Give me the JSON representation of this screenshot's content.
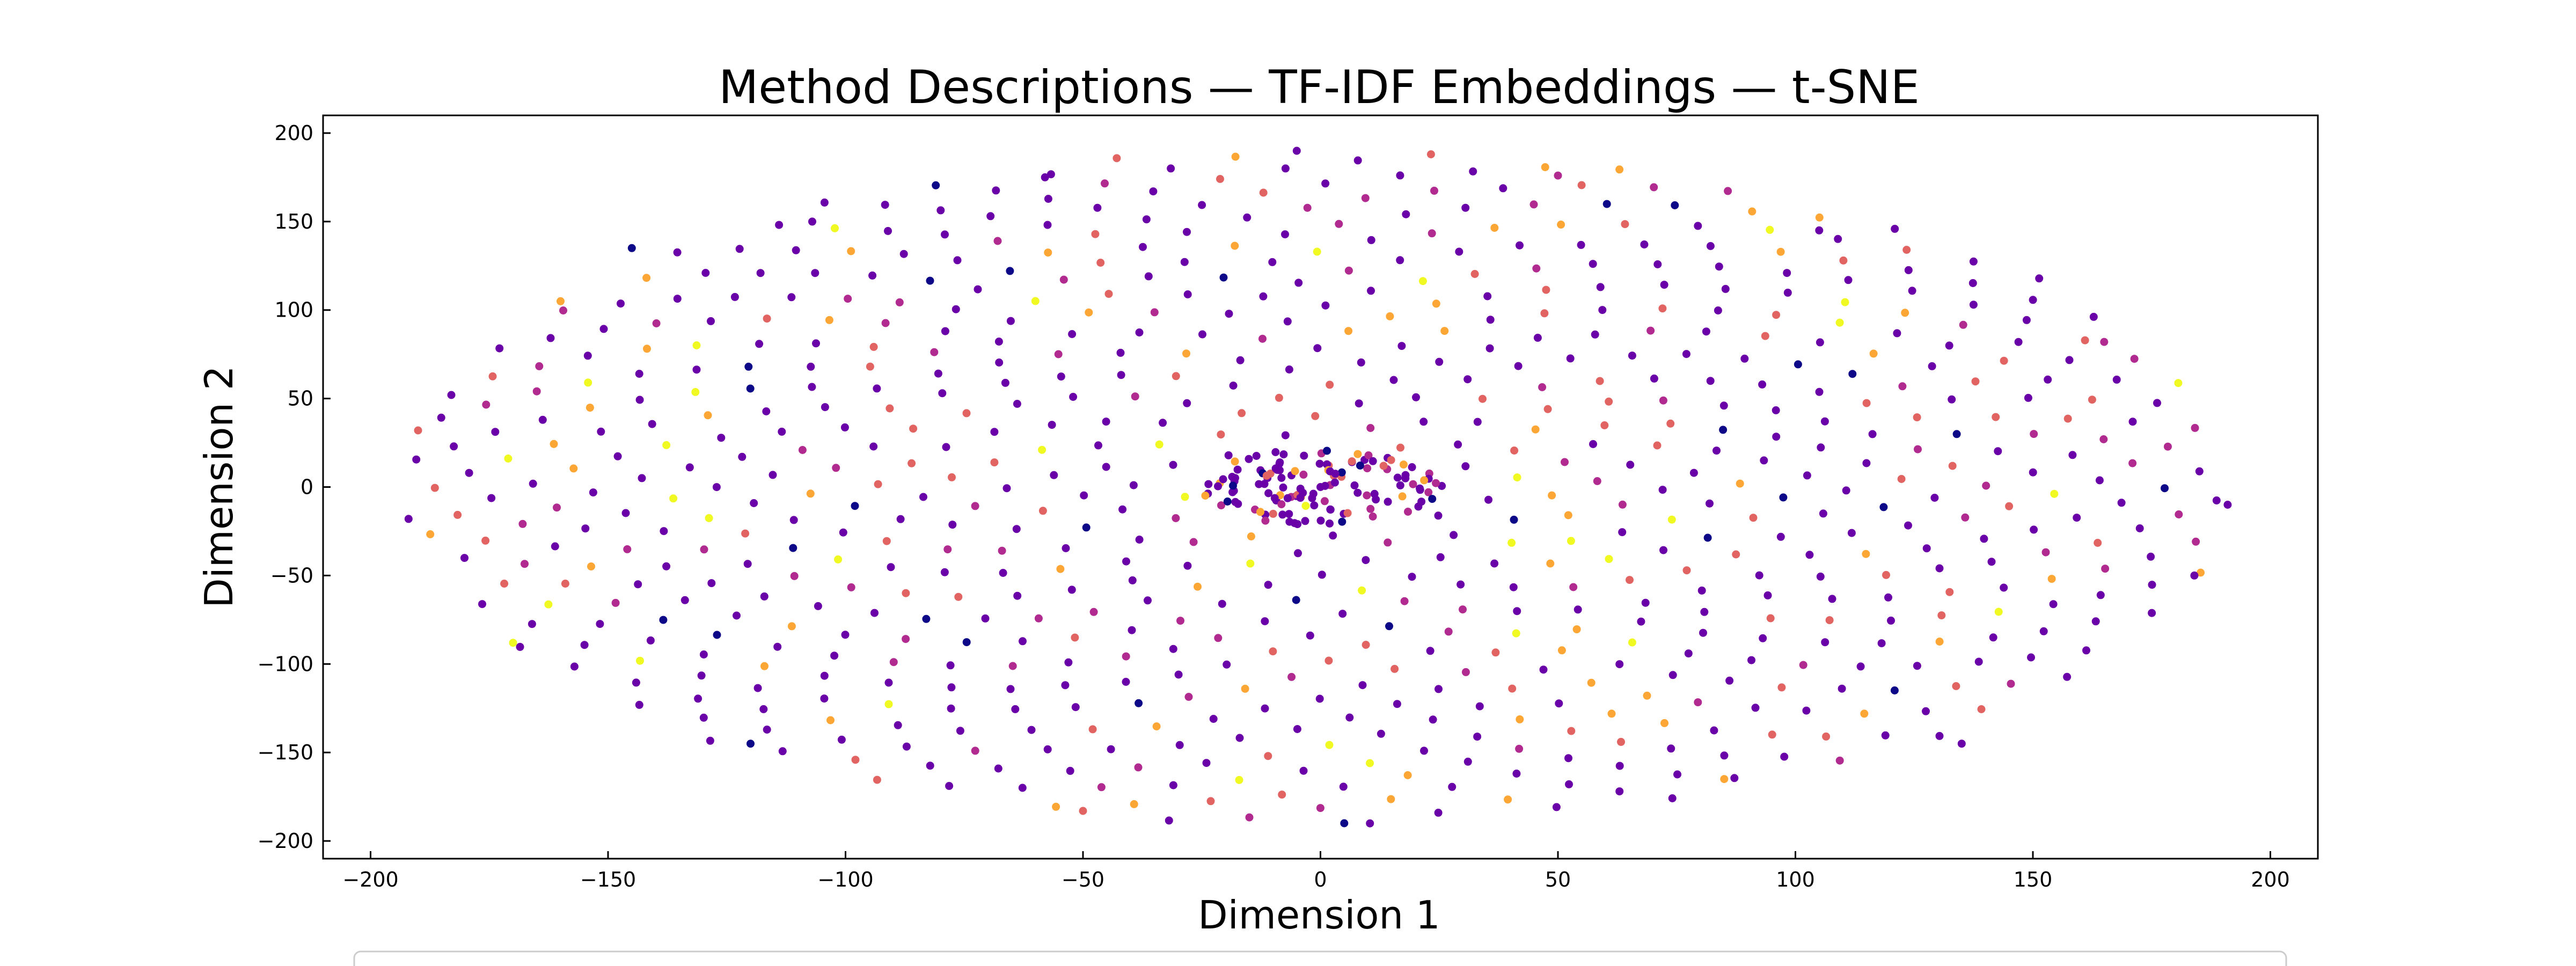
{
  "chart_data": {
    "type": "scatter",
    "title": "Method Descriptions — TF-IDF Embeddings — t-SNE",
    "xlabel": "Dimension 1",
    "ylabel": "Dimension 2",
    "xlim": [
      -210,
      210
    ],
    "ylim": [
      -210,
      210
    ],
    "xticks": [
      -200,
      -150,
      -100,
      -50,
      0,
      50,
      100,
      150,
      200
    ],
    "yticks": [
      -200,
      -150,
      -100,
      -50,
      0,
      50,
      100,
      150,
      200
    ],
    "xtick_labels": [
      "−200",
      "−150",
      "−100",
      "−50",
      "0",
      "50",
      "100",
      "150",
      "200"
    ],
    "ytick_labels": [
      "−200",
      "−150",
      "−100",
      "−50",
      "0",
      "50",
      "100",
      "150",
      "200"
    ],
    "grid": false,
    "colormap": "plasma",
    "palette": [
      "#0d0887",
      "#6a00a8",
      "#b12a90",
      "#e16462",
      "#fca636",
      "#f0f921"
    ],
    "marker_color_weights": [
      0.04,
      0.56,
      0.12,
      0.14,
      0.09,
      0.05
    ],
    "point_cloud": {
      "outer_ring_points": 720,
      "outer_x_radius": [
        25,
        192
      ],
      "outer_y_radius": [
        25,
        192
      ],
      "inner_cluster_points": 130,
      "inner_cluster_x_radius": 25,
      "inner_cluster_y_radius": 22
    },
    "sample_points": [
      {
        "x": -192,
        "y": -18
      },
      {
        "x": -190,
        "y": 32
      },
      {
        "x": -183,
        "y": 52
      },
      {
        "x": -160,
        "y": 105
      },
      {
        "x": -145,
        "y": 135
      },
      {
        "x": -107,
        "y": 150
      },
      {
        "x": -58,
        "y": 175
      },
      {
        "x": -5,
        "y": 190
      },
      {
        "x": 50,
        "y": 176
      },
      {
        "x": 105,
        "y": 145
      },
      {
        "x": 165,
        "y": 82
      },
      {
        "x": 191,
        "y": -10
      },
      {
        "x": 184,
        "y": -50
      },
      {
        "x": 135,
        "y": -145
      },
      {
        "x": 85,
        "y": -165
      },
      {
        "x": 5,
        "y": -190
      },
      {
        "x": -50,
        "y": -183
      },
      {
        "x": -120,
        "y": -145
      },
      {
        "x": -170,
        "y": -88
      },
      {
        "x": 0,
        "y": 0
      }
    ]
  }
}
